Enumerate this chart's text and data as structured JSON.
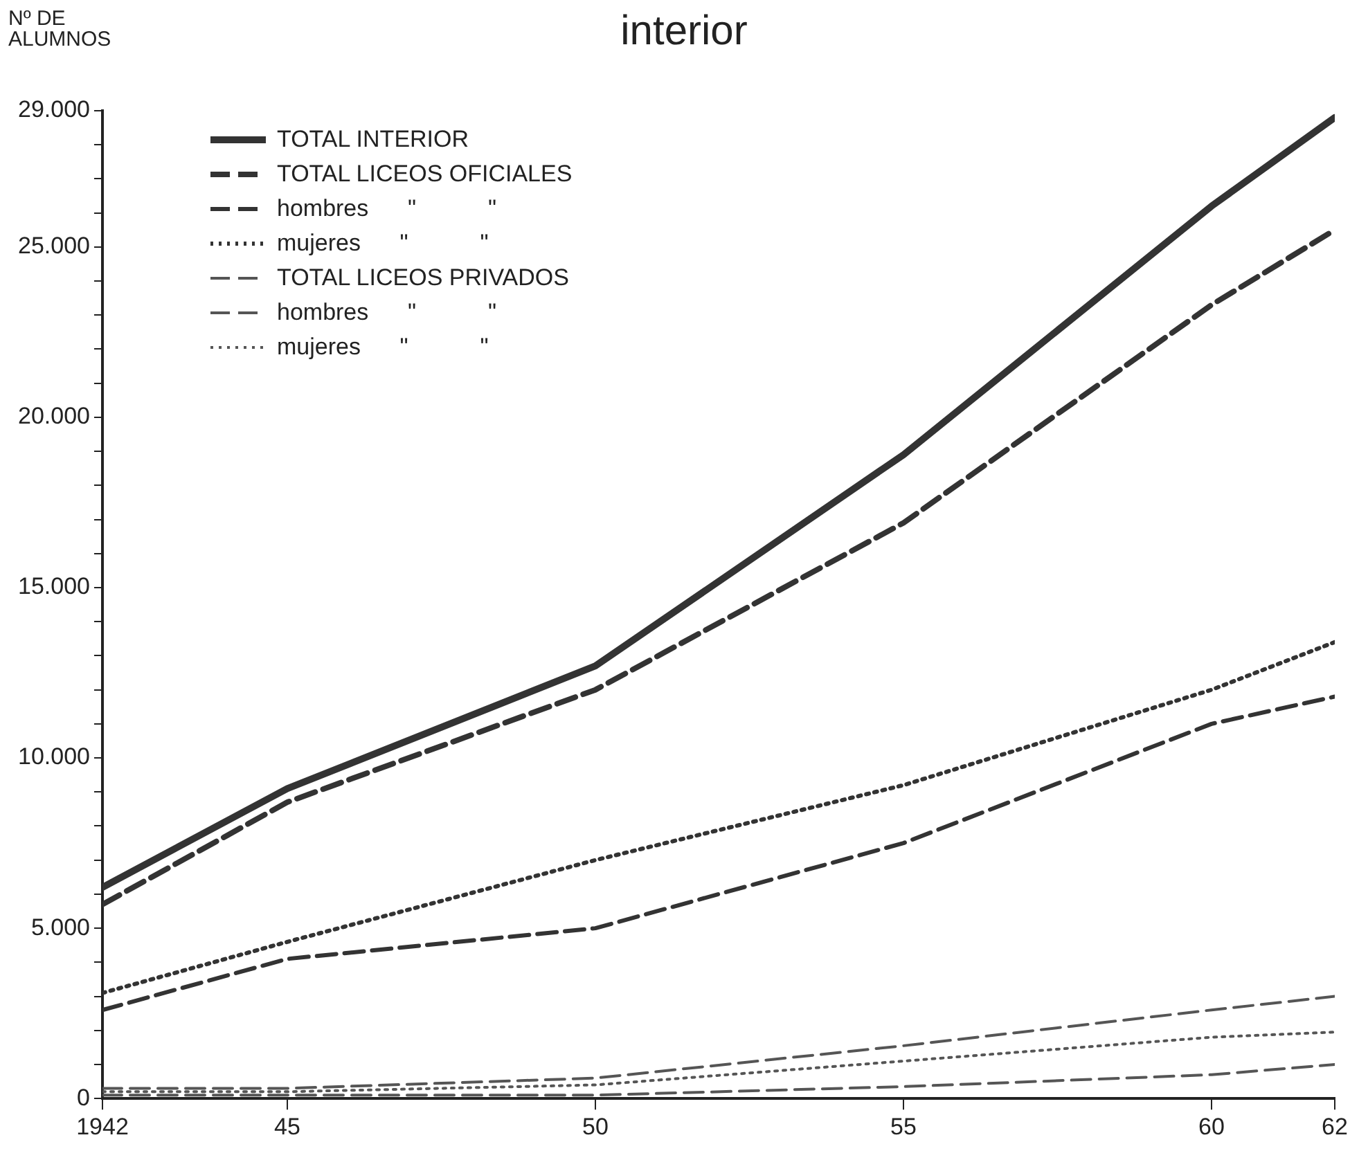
{
  "chart_data": {
    "type": "line",
    "title": "interior",
    "ylabel": "Nº DE ALUMNOS",
    "x": [
      1942,
      1945,
      1950,
      1955,
      1960,
      1962
    ],
    "xlim": [
      1942,
      1962
    ],
    "xticks": [
      {
        "value": 1942,
        "label": "1942"
      },
      {
        "value": 1945,
        "label": "45"
      },
      {
        "value": 1950,
        "label": "50"
      },
      {
        "value": 1955,
        "label": "55"
      },
      {
        "value": 1960,
        "label": "60"
      },
      {
        "value": 1962,
        "label": "62"
      }
    ],
    "ylim": [
      0,
      29000
    ],
    "yticks": [
      {
        "value": 0,
        "label": "0"
      },
      {
        "value": 1000,
        "label": null
      },
      {
        "value": 2000,
        "label": null
      },
      {
        "value": 3000,
        "label": null
      },
      {
        "value": 4000,
        "label": null
      },
      {
        "value": 5000,
        "label": "5.000"
      },
      {
        "value": 6000,
        "label": null
      },
      {
        "value": 7000,
        "label": null
      },
      {
        "value": 8000,
        "label": null
      },
      {
        "value": 9000,
        "label": null
      },
      {
        "value": 10000,
        "label": "10.000"
      },
      {
        "value": 11000,
        "label": null
      },
      {
        "value": 12000,
        "label": null
      },
      {
        "value": 13000,
        "label": null
      },
      {
        "value": 14000,
        "label": null
      },
      {
        "value": 15000,
        "label": "15.000"
      },
      {
        "value": 16000,
        "label": null
      },
      {
        "value": 17000,
        "label": null
      },
      {
        "value": 18000,
        "label": null
      },
      {
        "value": 19000,
        "label": null
      },
      {
        "value": 20000,
        "label": "20.000"
      },
      {
        "value": 21000,
        "label": null
      },
      {
        "value": 22000,
        "label": null
      },
      {
        "value": 23000,
        "label": null
      },
      {
        "value": 24000,
        "label": null
      },
      {
        "value": 25000,
        "label": "25.000"
      },
      {
        "value": 26000,
        "label": null
      },
      {
        "value": 27000,
        "label": null
      },
      {
        "value": 28000,
        "label": null
      },
      {
        "value": 29000,
        "label": "29.000"
      }
    ],
    "grid": false,
    "legend": "top left",
    "marker": "none",
    "series": [
      {
        "name": "TOTAL INTERIOR",
        "color": "#333333",
        "line_style": "solid",
        "values": [
          6200,
          9100,
          12700,
          18900,
          26200,
          28800
        ]
      },
      {
        "name": "TOTAL LICEOS OFICIALES",
        "color": "#333333",
        "line_style": "dashed",
        "values": [
          5700,
          8700,
          12000,
          16900,
          23300,
          25500
        ]
      },
      {
        "name": "hombres      \"           \"",
        "color": "#333333",
        "line_style": "dashed",
        "values": [
          2600,
          4100,
          5000,
          7500,
          11000,
          11800
        ]
      },
      {
        "name": "mujeres      \"           \"",
        "color": "#333333",
        "line_style": "dotted",
        "values": [
          3100,
          4600,
          7000,
          9200,
          12000,
          13400
        ]
      },
      {
        "name": "TOTAL LICEOS PRIVADOS",
        "color": "#555555",
        "line_style": "dashed",
        "values": [
          300,
          300,
          600,
          1550,
          2600,
          3000
        ]
      },
      {
        "name": "hombres      \"           \"",
        "color": "#555555",
        "line_style": "dashed",
        "values": [
          100,
          100,
          100,
          350,
          700,
          1000
        ]
      },
      {
        "name": "mujeres      \"           \"",
        "color": "#555555",
        "line_style": "dotted",
        "values": [
          200,
          200,
          400,
          1100,
          1800,
          1950
        ]
      }
    ]
  }
}
